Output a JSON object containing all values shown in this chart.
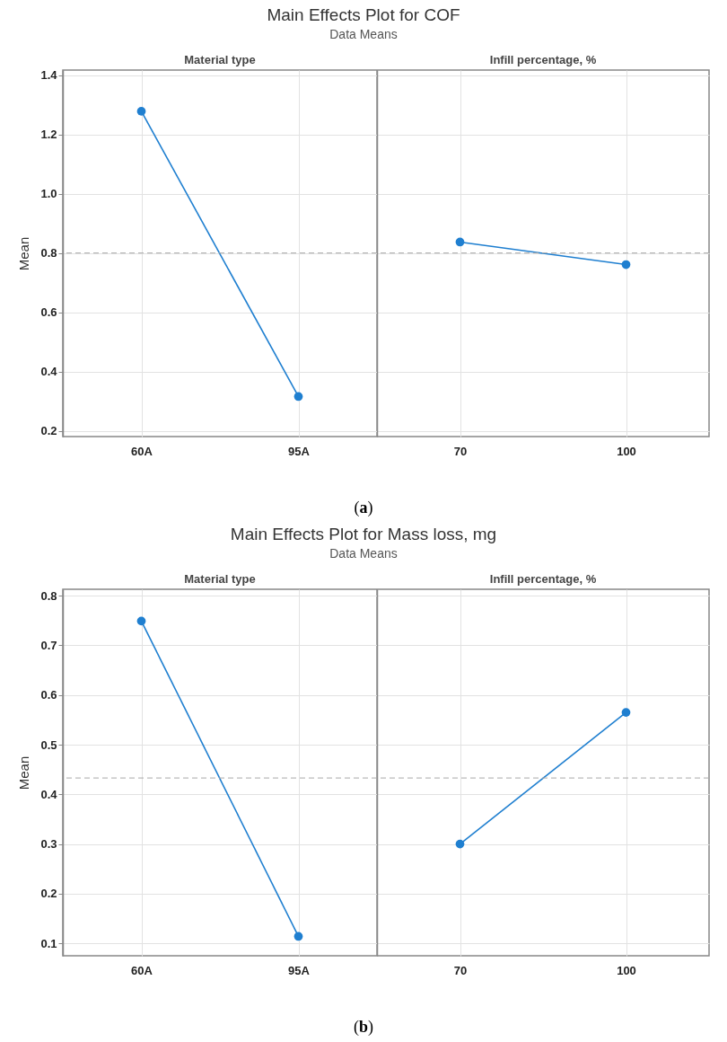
{
  "chart_data": [
    {
      "type": "line",
      "title": "Main Effects Plot for COF",
      "subtitle": "Data Means",
      "xlabel": "Material type",
      "ylabel": "Mean",
      "annotations": [
        "(a)"
      ],
      "categories": [
        "60A",
        "95A"
      ],
      "series": [
        {
          "color": "#1f7fd0",
          "values": [
            1.278,
            0.316
          ]
        }
      ],
      "ylim": [
        0.181,
        1.417
      ],
      "yticks": [
        0.2,
        0.4,
        0.6,
        0.8,
        {
          "value": 1,
          "label": "1.0"
        },
        1.2,
        1.4
      ],
      "grid": true,
      "marker": "circle",
      "line_style": "solid",
      "ref_lines": [
        {
          "axis": "y",
          "value": 0.8,
          "color": "#aaaaaa",
          "line_style": "dashed"
        }
      ]
    },
    {
      "type": "line",
      "xlabel": "Infill percentage, %",
      "categories": [
        "70",
        "100"
      ],
      "series": [
        {
          "color": "#1f7fd0",
          "values": [
            0.837,
            0.761
          ]
        }
      ],
      "ylim": [
        0.181,
        1.417
      ],
      "yticks": [
        0.2,
        0.4,
        0.6,
        0.8,
        1,
        1.2,
        1.4
      ],
      "tick_labels": "x",
      "grid": true,
      "marker": "circle",
      "line_style": "solid",
      "ref_lines": [
        {
          "axis": "y",
          "value": 0.8,
          "color": "#aaaaaa",
          "line_style": "dashed"
        }
      ]
    },
    {
      "type": "line",
      "title": "Main Effects Plot for Mass loss, mg",
      "subtitle": "Data Means",
      "xlabel": "Material type",
      "ylabel": "Mean",
      "annotations": [
        "(b)"
      ],
      "categories": [
        "60A",
        "95A"
      ],
      "series": [
        {
          "color": "#1f7fd0",
          "values": [
            0.749,
            0.114
          ]
        }
      ],
      "ylim": [
        0.075,
        0.813
      ],
      "yticks": [
        0.1,
        0.2,
        0.3,
        0.4,
        0.5,
        0.6,
        0.7,
        0.8
      ],
      "grid": true,
      "marker": "circle",
      "line_style": "solid",
      "ref_lines": [
        {
          "axis": "y",
          "value": 0.433,
          "color": "#aaaaaa",
          "line_style": "dashed"
        }
      ]
    },
    {
      "type": "line",
      "xlabel": "Infill percentage, %",
      "categories": [
        "70",
        "100"
      ],
      "series": [
        {
          "color": "#1f7fd0",
          "values": [
            0.3,
            0.565
          ]
        }
      ],
      "ylim": [
        0.075,
        0.813
      ],
      "yticks": [
        0.1,
        0.2,
        0.3,
        0.4,
        0.5,
        0.6,
        0.7,
        0.8
      ],
      "tick_labels": "x",
      "grid": true,
      "marker": "circle",
      "line_style": "solid",
      "ref_lines": [
        {
          "axis": "y",
          "value": 0.433,
          "color": "#aaaaaa",
          "line_style": "dashed"
        }
      ]
    }
  ]
}
